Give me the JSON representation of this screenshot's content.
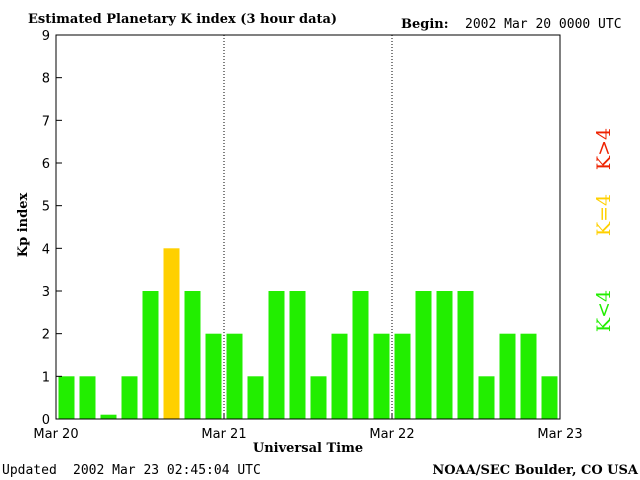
{
  "header": {
    "title": "Estimated Planetary K index (3 hour data)",
    "begin_label": "Begin:",
    "begin_value": "2002 Mar 20 0000 UTC"
  },
  "footer": {
    "updated_label": "Updated",
    "updated_value": "2002 Mar 23 02:45:04 UTC",
    "credit": "NOAA/SEC Boulder, CO USA"
  },
  "legend": {
    "low": "K<4",
    "mid": "K=4",
    "high": "K>4"
  },
  "colors": {
    "low": "#22ee00",
    "mid": "#ffd000",
    "high": "#ee2200"
  },
  "chart_data": {
    "type": "bar",
    "title": "Estimated Planetary K index (3 hour data)",
    "xlabel": "Universal Time",
    "ylabel": "Kp index",
    "ylim": [
      0,
      9
    ],
    "yticks": [
      "0",
      "1",
      "2",
      "3",
      "4",
      "5",
      "6",
      "7",
      "8",
      "9"
    ],
    "xticks": [
      "Mar 20",
      "Mar 21",
      "Mar 22",
      "Mar 23"
    ],
    "day_dividers": true,
    "values": [
      1,
      1,
      0.1,
      1,
      3,
      4,
      3,
      2,
      2,
      1,
      3,
      3,
      1,
      2,
      3,
      2,
      2,
      3,
      3,
      3,
      1,
      2,
      2,
      1
    ]
  }
}
